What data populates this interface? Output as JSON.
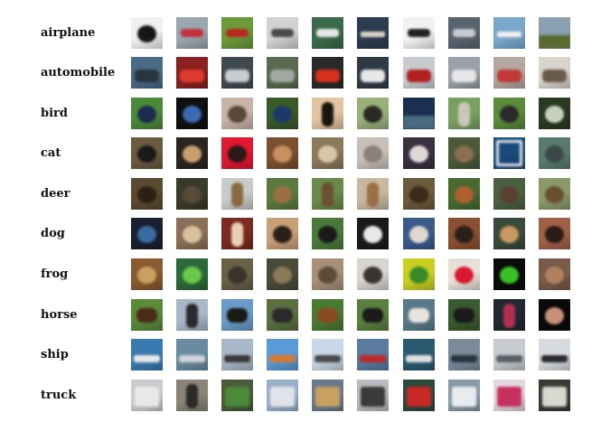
{
  "grid": {
    "rows": [
      {
        "label": "airplane",
        "thumbs": [
          {
            "bg": "#f0f0f0",
            "fg": "#151515",
            "shape": "blob"
          },
          {
            "bg": "#9aa6b0",
            "fg": "#c4303c",
            "shape": "plane"
          },
          {
            "bg": "#6a9a3a",
            "fg": "#b82820",
            "shape": "plane"
          },
          {
            "bg": "#d0d2d4",
            "fg": "#4a4a4a",
            "shape": "plane"
          },
          {
            "bg": "#3a6a4a",
            "fg": "#e8e8e8",
            "shape": "plane"
          },
          {
            "bg": "#2e3c50",
            "fg": "#d8d4c8",
            "shape": "bar"
          },
          {
            "bg": "#f2f2f2",
            "fg": "#222222",
            "shape": "plane"
          },
          {
            "bg": "#5a6470",
            "fg": "#c8ccd0",
            "shape": "plane"
          },
          {
            "bg": "#7aa8cc",
            "fg": "#f0f0f0",
            "shape": "bar"
          },
          {
            "bg": "#8aa0b0",
            "fg": "#5a6a30",
            "shape": "ground"
          }
        ]
      },
      {
        "label": "automobile",
        "thumbs": [
          {
            "bg": "#4a6a88",
            "fg": "#2a3440",
            "shape": "car"
          },
          {
            "bg": "#8a2020",
            "fg": "#e03a30",
            "shape": "car"
          },
          {
            "bg": "#404850",
            "fg": "#c8ccd0",
            "shape": "car"
          },
          {
            "bg": "#5a6a50",
            "fg": "#a0a8a0",
            "shape": "car"
          },
          {
            "bg": "#2a2a2a",
            "fg": "#d83020",
            "shape": "car"
          },
          {
            "bg": "#303a44",
            "fg": "#e8e8e8",
            "shape": "car"
          },
          {
            "bg": "#c8ccd0",
            "fg": "#b02020",
            "shape": "car"
          },
          {
            "bg": "#9aa0a8",
            "fg": "#e6e6e6",
            "shape": "car"
          },
          {
            "bg": "#b4a8a0",
            "fg": "#c03838",
            "shape": "car"
          },
          {
            "bg": "#d8d4cc",
            "fg": "#6a5a4a",
            "shape": "car"
          }
        ]
      },
      {
        "label": "bird",
        "thumbs": [
          {
            "bg": "#4a8a3a",
            "fg": "#1a2a50",
            "shape": "blob"
          },
          {
            "bg": "#101010",
            "fg": "#3a6ab0",
            "shape": "blob"
          },
          {
            "bg": "#c8b4a8",
            "fg": "#5a4838",
            "shape": "blob"
          },
          {
            "bg": "#3a5a2a",
            "fg": "#1a3a6a",
            "shape": "blob"
          },
          {
            "bg": "#e4c4a0",
            "fg": "#1a1410",
            "shape": "tall"
          },
          {
            "bg": "#9ab07a",
            "fg": "#2a2a22",
            "shape": "blob"
          },
          {
            "bg": "#1a3050",
            "fg": "#4a6a80",
            "shape": "ground"
          },
          {
            "bg": "#7aa060",
            "fg": "#c8c8b8",
            "shape": "tall"
          },
          {
            "bg": "#5a8a3a",
            "fg": "#2a2a2a",
            "shape": "blob"
          },
          {
            "bg": "#2a3a20",
            "fg": "#c8d0c0",
            "shape": "blob"
          }
        ]
      },
      {
        "label": "cat",
        "thumbs": [
          {
            "bg": "#6a5a40",
            "fg": "#1a1a1a",
            "shape": "blob"
          },
          {
            "bg": "#2a2420",
            "fg": "#c8a070",
            "shape": "blob"
          },
          {
            "bg": "#e01830",
            "fg": "#2a1a1a",
            "shape": "blob"
          },
          {
            "bg": "#7a5030",
            "fg": "#c89060",
            "shape": "blob"
          },
          {
            "bg": "#8a7a5a",
            "fg": "#d8c8a8",
            "shape": "blob"
          },
          {
            "bg": "#c8c0b8",
            "fg": "#8a8078",
            "shape": "blob"
          },
          {
            "bg": "#3a3040",
            "fg": "#e0d8d8",
            "shape": "blob"
          },
          {
            "bg": "#4a5a3a",
            "fg": "#8a7050",
            "shape": "blob"
          },
          {
            "bg": "#1a4a7a",
            "fg": "#e0e4ea",
            "shape": "frame"
          },
          {
            "bg": "#5a7a70",
            "fg": "#3a4a48",
            "shape": "blob"
          }
        ]
      },
      {
        "label": "deer",
        "thumbs": [
          {
            "bg": "#5a4a30",
            "fg": "#2a2014",
            "shape": "blob"
          },
          {
            "bg": "#3a3a2a",
            "fg": "#5a4a3a",
            "shape": "blob"
          },
          {
            "bg": "#c8ccc8",
            "fg": "#8a6a40",
            "shape": "tall"
          },
          {
            "bg": "#5a7a40",
            "fg": "#9a7040",
            "shape": "blob"
          },
          {
            "bg": "#6a8a4a",
            "fg": "#6a5030",
            "shape": "tall"
          },
          {
            "bg": "#c8b8a0",
            "fg": "#9a7048",
            "shape": "tall"
          },
          {
            "bg": "#6a5a3a",
            "fg": "#3a2a1a",
            "shape": "blob"
          },
          {
            "bg": "#4a6a30",
            "fg": "#b06030",
            "shape": "blob"
          },
          {
            "bg": "#4a6040",
            "fg": "#5a4030",
            "shape": "blob"
          },
          {
            "bg": "#8a9a6a",
            "fg": "#6a5030",
            "shape": "blob"
          }
        ]
      },
      {
        "label": "dog",
        "thumbs": [
          {
            "bg": "#1a2030",
            "fg": "#3a6aa0",
            "shape": "blob"
          },
          {
            "bg": "#8a7058",
            "fg": "#d8c0a0",
            "shape": "blob"
          },
          {
            "bg": "#7a2a20",
            "fg": "#e8d0b0",
            "shape": "tall"
          },
          {
            "bg": "#c8a078",
            "fg": "#2a2018",
            "shape": "blob"
          },
          {
            "bg": "#4a7a3a",
            "fg": "#1a1a1a",
            "shape": "blob"
          },
          {
            "bg": "#1a1a1a",
            "fg": "#e8e8e8",
            "shape": "blob"
          },
          {
            "bg": "#3a5a8a",
            "fg": "#e0d8d0",
            "shape": "blob"
          },
          {
            "bg": "#8a5030",
            "fg": "#2a2018",
            "shape": "blob"
          },
          {
            "bg": "#3a4a3a",
            "fg": "#c89860",
            "shape": "blob"
          },
          {
            "bg": "#a06048",
            "fg": "#2a1a14",
            "shape": "blob"
          }
        ]
      },
      {
        "label": "frog",
        "thumbs": [
          {
            "bg": "#8a5a30",
            "fg": "#c8a060",
            "shape": "blob"
          },
          {
            "bg": "#2a6a3a",
            "fg": "#6ac848",
            "shape": "blob"
          },
          {
            "bg": "#6a6048",
            "fg": "#3a3428",
            "shape": "blob"
          },
          {
            "bg": "#4a4a38",
            "fg": "#8a7a58",
            "shape": "blob"
          },
          {
            "bg": "#a89078",
            "fg": "#5a4a38",
            "shape": "blob"
          },
          {
            "bg": "#d8d4d0",
            "fg": "#3a3430",
            "shape": "blob"
          },
          {
            "bg": "#c8d020",
            "fg": "#3a8a2a",
            "shape": "blob"
          },
          {
            "bg": "#e8e0d8",
            "fg": "#d81830",
            "shape": "blob"
          },
          {
            "bg": "#0a0a0a",
            "fg": "#38c028",
            "shape": "blob"
          },
          {
            "bg": "#7a5a4a",
            "fg": "#b08060",
            "shape": "blob"
          }
        ]
      },
      {
        "label": "horse",
        "thumbs": [
          {
            "bg": "#5a8a3a",
            "fg": "#4a2a18",
            "shape": "horse"
          },
          {
            "bg": "#a8b8c8",
            "fg": "#2a2a2a",
            "shape": "tall"
          },
          {
            "bg": "#6a9ac8",
            "fg": "#1a1a14",
            "shape": "horse"
          },
          {
            "bg": "#5a7040",
            "fg": "#2a2a2a",
            "shape": "horse"
          },
          {
            "bg": "#4a7a30",
            "fg": "#8a4a20",
            "shape": "horse"
          },
          {
            "bg": "#5a8040",
            "fg": "#1a1a1a",
            "shape": "horse"
          },
          {
            "bg": "#5a7a8a",
            "fg": "#e8e4e0",
            "shape": "horse"
          },
          {
            "bg": "#3a5a30",
            "fg": "#1a1a18",
            "shape": "horse"
          },
          {
            "bg": "#202830",
            "fg": "#b03050",
            "shape": "tall"
          },
          {
            "bg": "#0a0a0a",
            "fg": "#c89078",
            "shape": "blob"
          }
        ]
      },
      {
        "label": "ship",
        "thumbs": [
          {
            "bg": "#3a7ab0",
            "fg": "#e8e8e8",
            "shape": "ship"
          },
          {
            "bg": "#6a8aa0",
            "fg": "#d0d4d8",
            "shape": "ship"
          },
          {
            "bg": "#a8b8c8",
            "fg": "#3a3a3a",
            "shape": "ship"
          },
          {
            "bg": "#5a9ad8",
            "fg": "#d87830",
            "shape": "ship"
          },
          {
            "bg": "#c8d8e8",
            "fg": "#4a4a4a",
            "shape": "ship"
          },
          {
            "bg": "#5a7aa0",
            "fg": "#c02828",
            "shape": "ship"
          },
          {
            "bg": "#2a5a70",
            "fg": "#e0e0e0",
            "shape": "ship"
          },
          {
            "bg": "#7a8a9a",
            "fg": "#2a3440",
            "shape": "ship"
          },
          {
            "bg": "#c8ccd0",
            "fg": "#5a6068",
            "shape": "ship"
          },
          {
            "bg": "#d8dce0",
            "fg": "#2a2a30",
            "shape": "ship"
          }
        ]
      },
      {
        "label": "truck",
        "thumbs": [
          {
            "bg": "#c8ccd0",
            "fg": "#e8e8e8",
            "shape": "truck"
          },
          {
            "bg": "#8a8478",
            "fg": "#2a2a28",
            "shape": "tall"
          },
          {
            "bg": "#4a5a3a",
            "fg": "#4a8a3a",
            "shape": "truck"
          },
          {
            "bg": "#9ab0c8",
            "fg": "#e0e4ea",
            "shape": "truck"
          },
          {
            "bg": "#6a7a8a",
            "fg": "#c8a060",
            "shape": "truck"
          },
          {
            "bg": "#b8bcc0",
            "fg": "#3a3a3a",
            "shape": "truck"
          },
          {
            "bg": "#2a4a3a",
            "fg": "#c82828",
            "shape": "truck"
          },
          {
            "bg": "#8a9aa8",
            "fg": "#e8ecf0",
            "shape": "truck"
          },
          {
            "bg": "#e0d8e0",
            "fg": "#c83060",
            "shape": "truck"
          },
          {
            "bg": "#3a3a34",
            "fg": "#d8d8d0",
            "shape": "truck"
          }
        ]
      }
    ]
  }
}
